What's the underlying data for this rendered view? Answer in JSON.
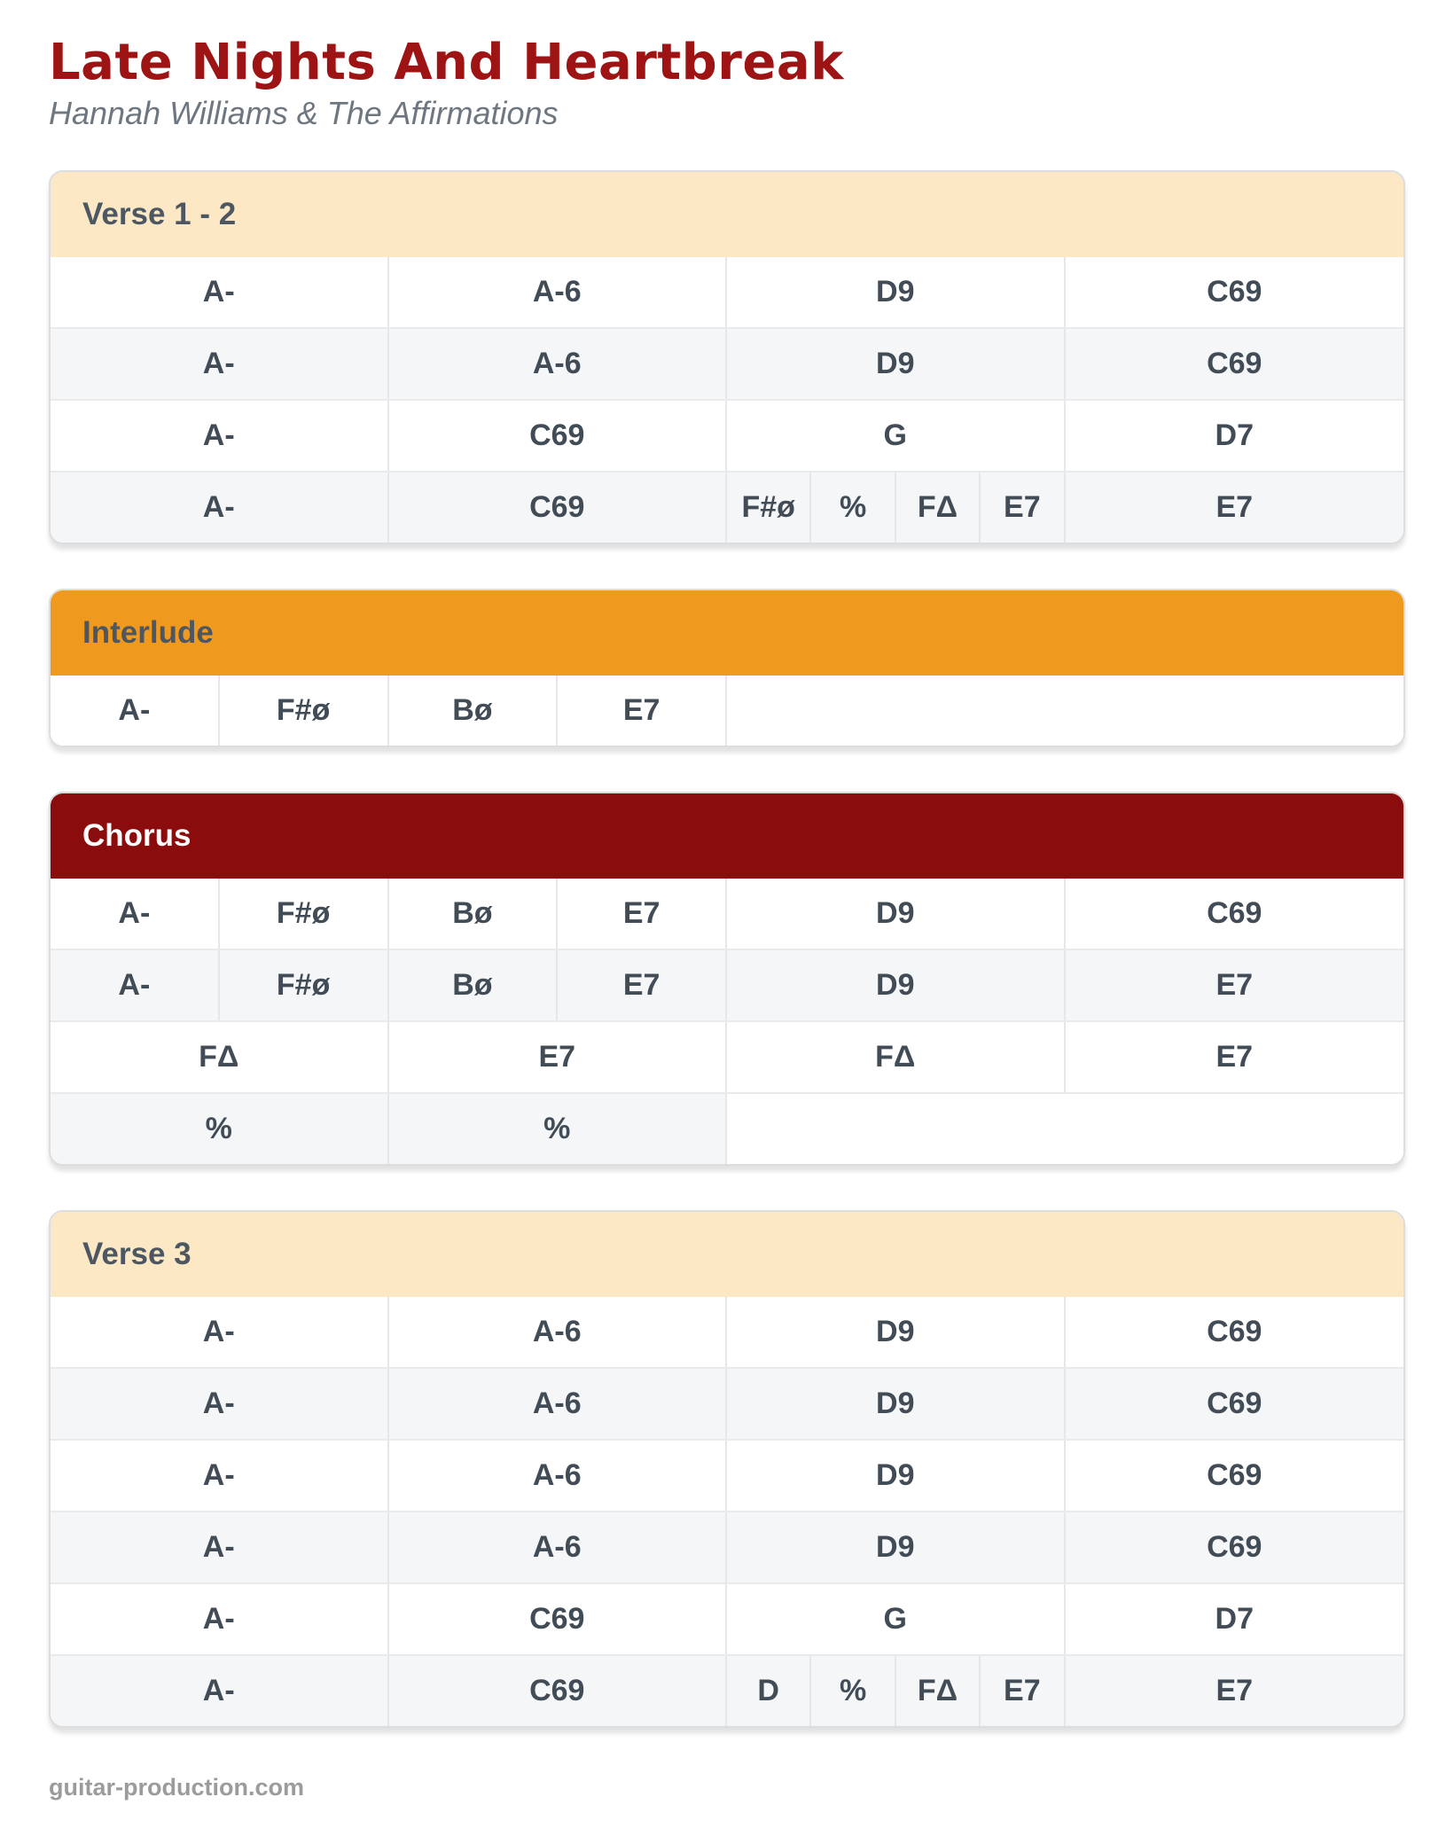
{
  "page": {
    "title": "Late Nights And Heartbreak",
    "subtitle": "Hannah Williams & The Affirmations",
    "footer": "guitar-production.com"
  },
  "colors": {
    "title_red": "#9E1414",
    "subtitle_gray": "#6E7780",
    "chord_text": "#424C56",
    "row_alt_bg": "#F4F6F8",
    "header_peach_bg": "#FCE8C5",
    "header_orange_bg": "#F0991F",
    "header_darkred_bg": "#8B0C0C",
    "header_dark_text": "#4D5761",
    "header_light_text": "#FFFFFF"
  },
  "sections": [
    {
      "id": "verse-1-2",
      "label": "Verse 1 - 2",
      "header_bg": "#FCE8C5",
      "header_color": "#4D5761",
      "rows": [
        {
          "shaded": false,
          "cells": [
            {
              "chord": "A-",
              "span": 4
            },
            {
              "chord": "A-6",
              "span": 4
            },
            {
              "chord": "D9",
              "span": 4
            },
            {
              "chord": "C69",
              "span": 4
            }
          ]
        },
        {
          "shaded": true,
          "cells": [
            {
              "chord": "A-",
              "span": 4
            },
            {
              "chord": "A-6",
              "span": 4
            },
            {
              "chord": "D9",
              "span": 4
            },
            {
              "chord": "C69",
              "span": 4
            }
          ]
        },
        {
          "shaded": false,
          "cells": [
            {
              "chord": "A-",
              "span": 4
            },
            {
              "chord": "C69",
              "span": 4
            },
            {
              "chord": "G",
              "span": 4
            },
            {
              "chord": "D7",
              "span": 4
            }
          ]
        },
        {
          "shaded": true,
          "cells": [
            {
              "chord": "A-",
              "span": 4
            },
            {
              "chord": "C69",
              "span": 4
            },
            {
              "chord": "F#ø",
              "span": 1
            },
            {
              "chord": "%",
              "span": 1
            },
            {
              "chord": "FΔ",
              "span": 1
            },
            {
              "chord": "E7",
              "span": 1
            },
            {
              "chord": "E7",
              "span": 4
            }
          ]
        }
      ]
    },
    {
      "id": "interlude",
      "label": "Interlude",
      "header_bg": "#F0991F",
      "header_color": "#4D5761",
      "rows": [
        {
          "shaded": false,
          "cells": [
            {
              "chord": "A-",
              "span": 2
            },
            {
              "chord": "F#ø",
              "span": 2
            },
            {
              "chord": "Bø",
              "span": 2
            },
            {
              "chord": "E7",
              "span": 2
            },
            {
              "chord": "",
              "span": 8,
              "empty": true
            }
          ]
        }
      ]
    },
    {
      "id": "chorus",
      "label": "Chorus",
      "header_bg": "#8B0C0C",
      "header_color": "#FFFFFF",
      "rows": [
        {
          "shaded": false,
          "cells": [
            {
              "chord": "A-",
              "span": 2
            },
            {
              "chord": "F#ø",
              "span": 2
            },
            {
              "chord": "Bø",
              "span": 2
            },
            {
              "chord": "E7",
              "span": 2
            },
            {
              "chord": "D9",
              "span": 4
            },
            {
              "chord": "C69",
              "span": 4
            }
          ]
        },
        {
          "shaded": true,
          "cells": [
            {
              "chord": "A-",
              "span": 2
            },
            {
              "chord": "F#ø",
              "span": 2
            },
            {
              "chord": "Bø",
              "span": 2
            },
            {
              "chord": "E7",
              "span": 2
            },
            {
              "chord": "D9",
              "span": 4
            },
            {
              "chord": "E7",
              "span": 4
            }
          ]
        },
        {
          "shaded": false,
          "cells": [
            {
              "chord": "FΔ",
              "span": 4
            },
            {
              "chord": "E7",
              "span": 4
            },
            {
              "chord": "FΔ",
              "span": 4
            },
            {
              "chord": "E7",
              "span": 4
            }
          ]
        },
        {
          "shaded": true,
          "cells": [
            {
              "chord": "%",
              "span": 4
            },
            {
              "chord": "%",
              "span": 4
            },
            {
              "chord": "",
              "span": 8,
              "empty": true
            }
          ]
        }
      ]
    },
    {
      "id": "verse-3",
      "label": "Verse 3",
      "header_bg": "#FCE8C5",
      "header_color": "#4D5761",
      "rows": [
        {
          "shaded": false,
          "cells": [
            {
              "chord": "A-",
              "span": 4
            },
            {
              "chord": "A-6",
              "span": 4
            },
            {
              "chord": "D9",
              "span": 4
            },
            {
              "chord": "C69",
              "span": 4
            }
          ]
        },
        {
          "shaded": true,
          "cells": [
            {
              "chord": "A-",
              "span": 4
            },
            {
              "chord": "A-6",
              "span": 4
            },
            {
              "chord": "D9",
              "span": 4
            },
            {
              "chord": "C69",
              "span": 4
            }
          ]
        },
        {
          "shaded": false,
          "cells": [
            {
              "chord": "A-",
              "span": 4
            },
            {
              "chord": "A-6",
              "span": 4
            },
            {
              "chord": "D9",
              "span": 4
            },
            {
              "chord": "C69",
              "span": 4
            }
          ]
        },
        {
          "shaded": true,
          "cells": [
            {
              "chord": "A-",
              "span": 4
            },
            {
              "chord": "A-6",
              "span": 4
            },
            {
              "chord": "D9",
              "span": 4
            },
            {
              "chord": "C69",
              "span": 4
            }
          ]
        },
        {
          "shaded": false,
          "cells": [
            {
              "chord": "A-",
              "span": 4
            },
            {
              "chord": "C69",
              "span": 4
            },
            {
              "chord": "G",
              "span": 4
            },
            {
              "chord": "D7",
              "span": 4
            }
          ]
        },
        {
          "shaded": true,
          "cells": [
            {
              "chord": "A-",
              "span": 4
            },
            {
              "chord": "C69",
              "span": 4
            },
            {
              "chord": "D",
              "span": 1
            },
            {
              "chord": "%",
              "span": 1
            },
            {
              "chord": "FΔ",
              "span": 1
            },
            {
              "chord": "E7",
              "span": 1
            },
            {
              "chord": "E7",
              "span": 4
            }
          ]
        }
      ]
    }
  ]
}
